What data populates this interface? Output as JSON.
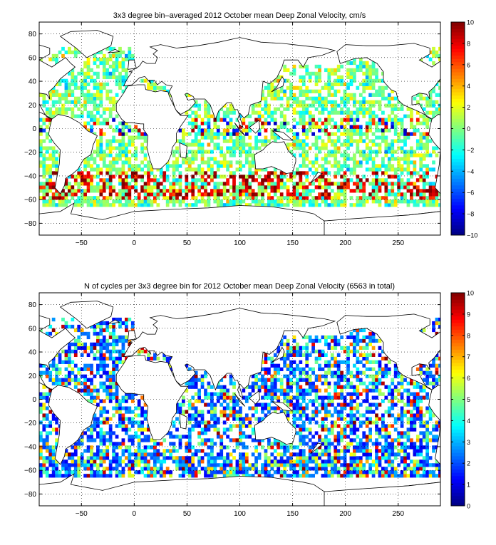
{
  "chart_data": [
    {
      "type": "heatmap",
      "title": "3x3 degree bin–averaged 2012 October mean Deep Zonal Velocity, cm/s",
      "xlabel": "",
      "ylabel": "",
      "xlim": [
        -90,
        290
      ],
      "ylim": [
        -90,
        90
      ],
      "x_ticks": [
        -50,
        0,
        50,
        100,
        150,
        200,
        250
      ],
      "y_ticks": [
        80,
        60,
        40,
        20,
        0,
        -20,
        -40,
        -60,
        -80
      ],
      "grid": true,
      "bin_size_deg": 3,
      "colorbar": {
        "range": [
          -10,
          10
        ],
        "ticks": [
          10,
          8,
          6,
          4,
          2,
          0,
          -2,
          -4,
          -6,
          -8,
          -10
        ],
        "colormap": "jet"
      }
    },
    {
      "type": "heatmap",
      "title": "N of cycles per 3x3 degree bin for 2012 October mean Deep Zonal Velocity (6563 in total)",
      "xlabel": "",
      "ylabel": "",
      "xlim": [
        -90,
        290
      ],
      "ylim": [
        -90,
        90
      ],
      "x_ticks": [
        -50,
        0,
        50,
        100,
        150,
        200,
        250
      ],
      "y_ticks": [
        80,
        60,
        40,
        20,
        0,
        -20,
        -40,
        -60,
        -80
      ],
      "grid": true,
      "bin_size_deg": 3,
      "colorbar": {
        "range": [
          0,
          10
        ],
        "ticks": [
          10,
          9,
          8,
          7,
          6,
          5,
          4,
          3,
          2,
          1,
          0
        ],
        "colormap": "jet"
      }
    }
  ]
}
